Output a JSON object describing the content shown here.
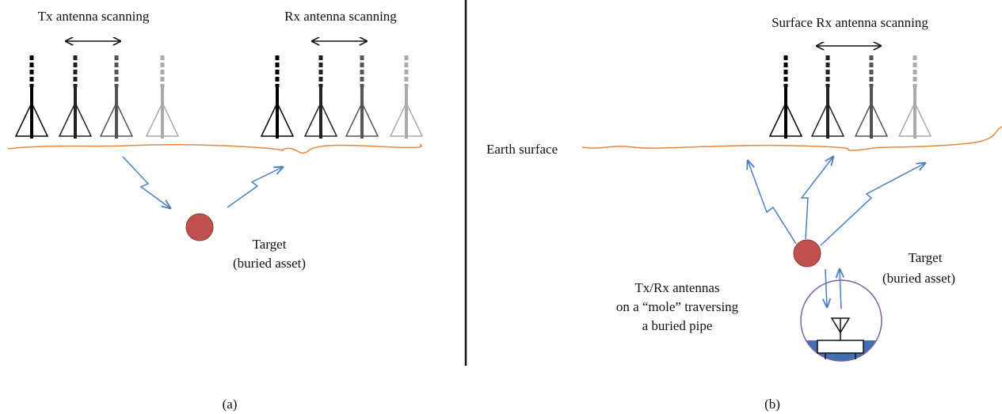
{
  "panels": [
    {
      "label": "(a)",
      "tx_label": "Tx antenna scanning",
      "rx_label": "Rx antenna scanning",
      "target": [
        "Target",
        "(buried asset)"
      ]
    },
    {
      "label": "(b)",
      "scan_label": "Surface Rx antenna scanning",
      "surface_label": "Earth surface",
      "mole_label": [
        "Tx/Rx antennas",
        "on a “mole” traversing",
        "a buried pipe"
      ],
      "target": [
        "Target",
        "(buried asset)"
      ]
    }
  ]
}
